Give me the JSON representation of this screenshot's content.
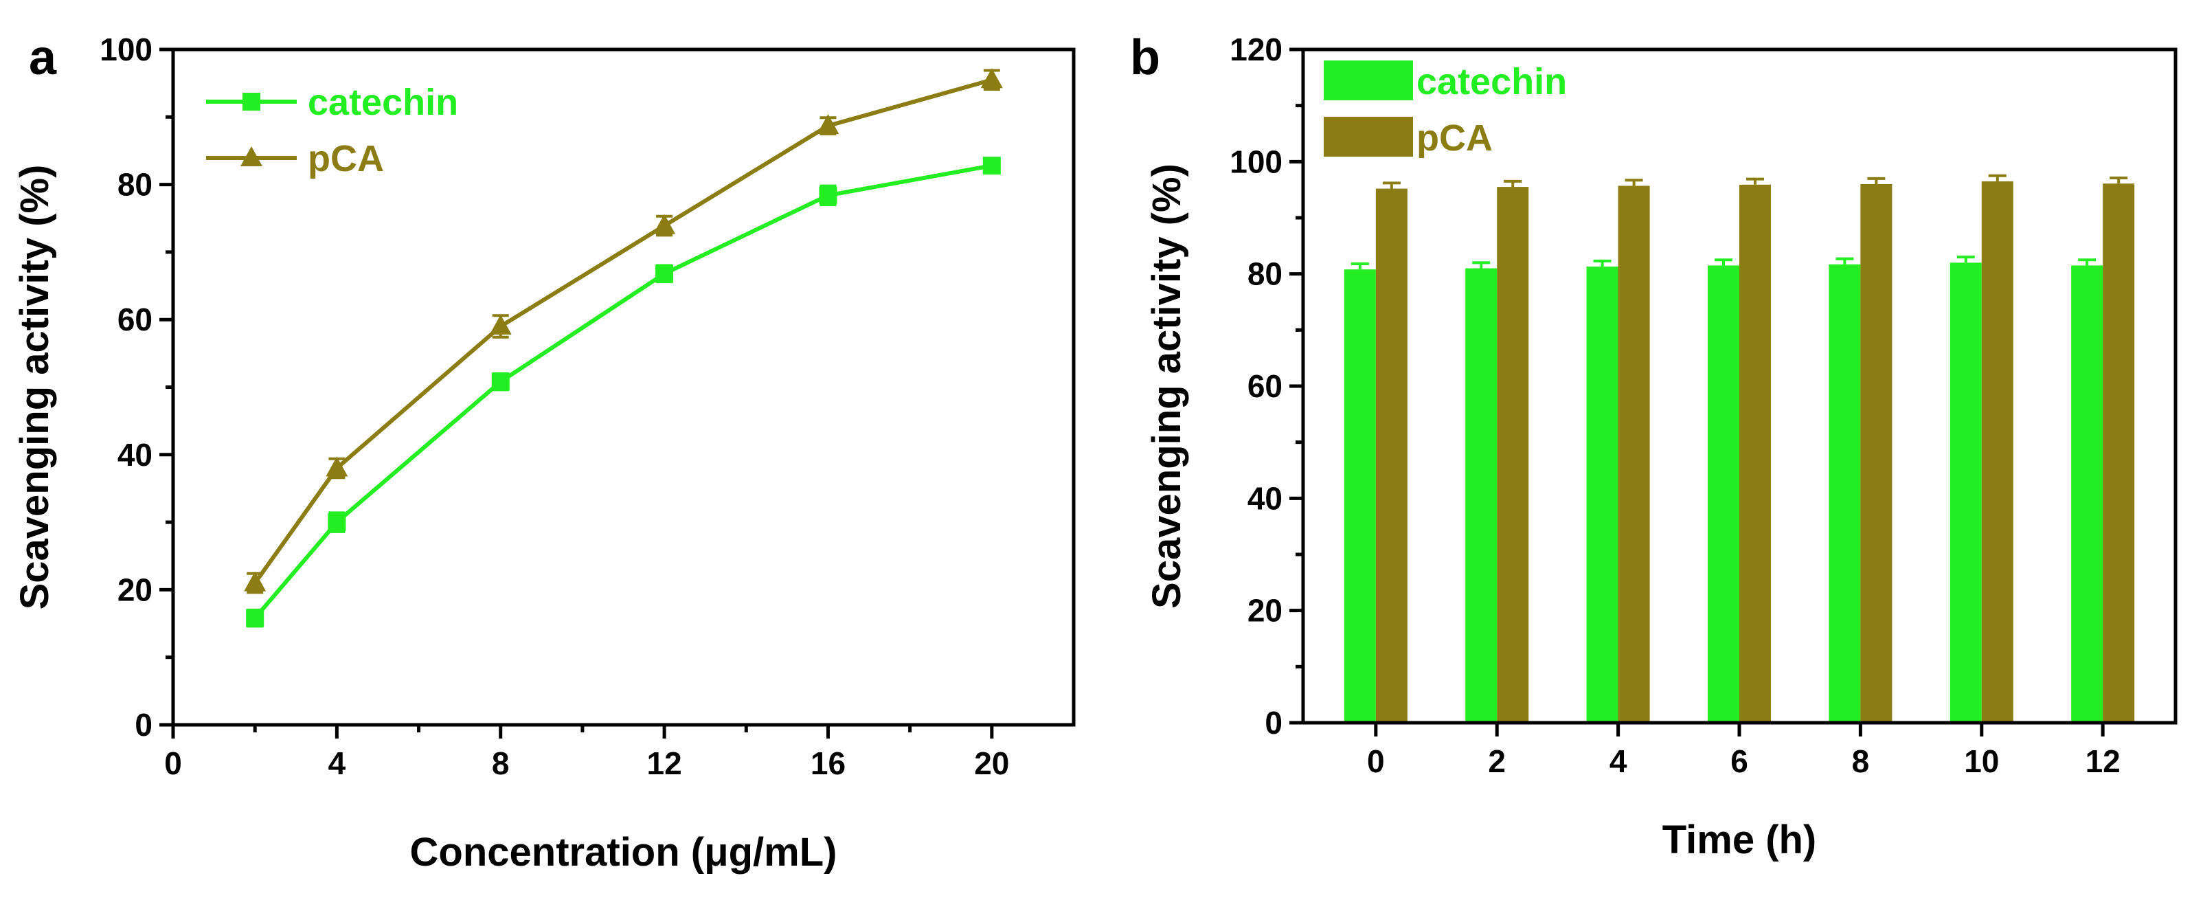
{
  "colors": {
    "catechin": "#22ee22",
    "pca": "#8b7d14",
    "axis": "#000000"
  },
  "chart_data": [
    {
      "panel_label": "a",
      "type": "line",
      "title": "",
      "xlabel": "Concentration (μg/mL)",
      "ylabel": "Scavenging activity (%)",
      "xlim": [
        0,
        22
      ],
      "ylim": [
        0,
        100
      ],
      "xticks": [
        0,
        4,
        8,
        12,
        16,
        20
      ],
      "yticks": [
        0,
        20,
        40,
        60,
        80,
        100
      ],
      "x": [
        2,
        4,
        8,
        12,
        16,
        20
      ],
      "legend_position": "top-left",
      "series": [
        {
          "name": "catechin",
          "color_key": "catechin",
          "marker": "square",
          "values": [
            15.8,
            30.0,
            50.8,
            66.8,
            78.4,
            82.8
          ],
          "errors": [
            1.2,
            1.4,
            1.2,
            1.2,
            1.4,
            1.0
          ]
        },
        {
          "name": "pCA",
          "color_key": "pca",
          "marker": "triangle",
          "values": [
            21.0,
            38.0,
            59.0,
            73.9,
            88.7,
            95.5
          ],
          "errors": [
            1.4,
            1.4,
            1.6,
            1.4,
            1.2,
            1.4
          ]
        }
      ]
    },
    {
      "panel_label": "b",
      "type": "bar",
      "title": "",
      "xlabel": "Time (h)",
      "ylabel": "Scavenging activity (%)",
      "ylim": [
        0,
        120
      ],
      "yticks": [
        0,
        20,
        40,
        60,
        80,
        100,
        120
      ],
      "categories": [
        "0",
        "2",
        "4",
        "6",
        "8",
        "10",
        "12"
      ],
      "legend_position": "top-left",
      "series": [
        {
          "name": "catechin",
          "color_key": "catechin",
          "values": [
            80.8,
            81.0,
            81.3,
            81.5,
            81.7,
            82.0,
            81.5
          ],
          "errors": [
            1.0,
            1.0,
            1.0,
            1.0,
            1.0,
            1.0,
            1.0
          ]
        },
        {
          "name": "pCA",
          "color_key": "pca",
          "values": [
            95.2,
            95.5,
            95.7,
            95.9,
            96.0,
            96.5,
            96.1
          ],
          "errors": [
            1.0,
            1.0,
            1.0,
            1.0,
            1.0,
            1.0,
            1.0
          ]
        }
      ]
    }
  ]
}
